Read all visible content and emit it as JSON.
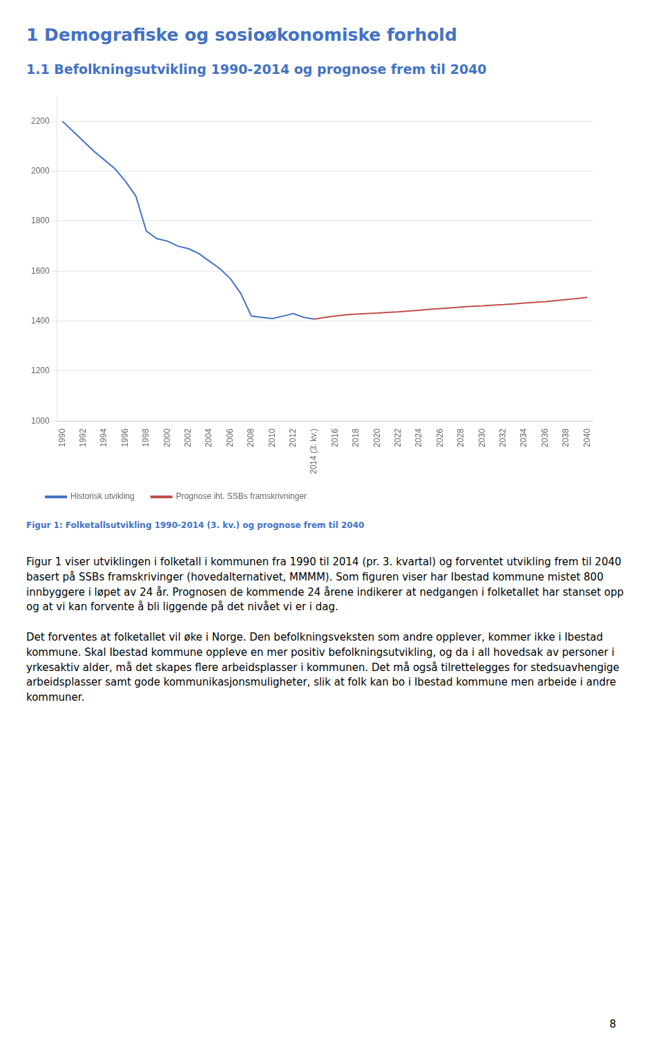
{
  "heading1": "1   Demografiske og sosioøkonomiske forhold",
  "heading2": "1.1  Befolkningsutvikling 1990-2014 og prognose frem til 2040",
  "caption": "Figur 1: Folketallsutvikling 1990-2014 (3. kv.) og prognose frem til 2040",
  "body_paragraphs": [
    "Figur 1 viser utviklingen i folketall i kommunen fra 1990 til 2014 (pr. 3. kvartal) og forventet utvikling frem til 2040 basert på SSBs framskrivinger (hovedalternativet, MMMM).  Som figuren viser har Ibestad kommune mistet 800 innbyggere i løpet av 24 år. Prognosen de kommende 24 årene indikerer at nedgangen i folketallet har stanset opp og at vi kan forvente å bli liggende på det nivået vi er i dag.",
    "Det forventes at folketallet vil øke i Norge.  Den befolkningsveksten som andre opplever, kommer ikke i Ibestad kommune. Skal Ibestad kommune oppleve en mer positiv befolkningsutvikling, og da i all hovedsak av personer i yrkesaktiv alder, må det skapes flere arbeidsplasser i kommunen. Det må også tilrettelegges for stedsuavhengige arbeidsplasser samt gode kommunikasjonsmuligheter, slik at folk kan bo i Ibestad kommune men arbeide i andre kommuner."
  ],
  "page_number": "8",
  "chart_data": {
    "type": "line",
    "series": [
      {
        "name": "Historisk utvikling",
        "color": "#4472C4",
        "x": [
          1990,
          1991,
          1992,
          1993,
          1994,
          1995,
          1996,
          1997,
          1998,
          1999,
          2000,
          2001,
          2002,
          2003,
          2004,
          2005,
          2006,
          2007,
          2008,
          2009,
          2010,
          2011,
          2012,
          2013,
          2014
        ],
        "values": [
          2200,
          2160,
          2120,
          2080,
          2045,
          2010,
          1960,
          1900,
          1760,
          1730,
          1720,
          1700,
          1690,
          1670,
          1640,
          1610,
          1570,
          1510,
          1420,
          1415,
          1410,
          1420,
          1430,
          1415,
          1408
        ]
      },
      {
        "name": "Prognose iht. SSBs framskrivninger",
        "color": "#C0504D",
        "x": [
          2014,
          2015,
          2016,
          2017,
          2018,
          2019,
          2020,
          2021,
          2022,
          2023,
          2024,
          2025,
          2026,
          2027,
          2028,
          2029,
          2030,
          2031,
          2032,
          2033,
          2034,
          2035,
          2036,
          2037,
          2038,
          2039,
          2040
        ],
        "values": [
          1408,
          1415,
          1420,
          1425,
          1428,
          1430,
          1432,
          1435,
          1437,
          1440,
          1443,
          1447,
          1450,
          1453,
          1456,
          1459,
          1461,
          1464,
          1466,
          1469,
          1472,
          1475,
          1478,
          1482,
          1486,
          1490,
          1495
        ]
      }
    ],
    "xlim": [
      1989.5,
      2040.5
    ],
    "xticks": [
      1990,
      1992,
      1994,
      1996,
      1998,
      2000,
      2002,
      2004,
      2006,
      2008,
      2010,
      2012,
      {
        "value": 2014,
        "label": "2014 (3. kv.)"
      },
      2016,
      2018,
      2020,
      2022,
      2024,
      2026,
      2028,
      2030,
      2032,
      2034,
      2036,
      2038,
      2040
    ],
    "ylim": [
      1000,
      2300
    ],
    "yticks": [
      1000,
      1200,
      1400,
      1600,
      1800,
      2000,
      2200
    ],
    "grid": "y",
    "legend": "bottom left"
  }
}
